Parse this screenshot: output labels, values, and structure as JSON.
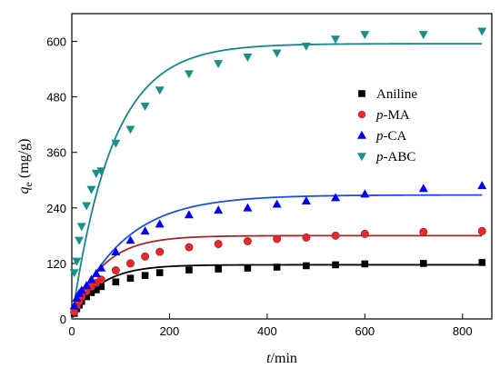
{
  "chart_data": {
    "type": "scatter",
    "title": "",
    "xlabel": "t/min",
    "xlabel_parts": [
      "t",
      "/min"
    ],
    "ylabel": "qe (mg/g)",
    "ylabel_parts": [
      "q",
      "e",
      " (mg/g)"
    ],
    "xlim": [
      0,
      860
    ],
    "ylim": [
      0,
      660
    ],
    "xticks": [
      0,
      200,
      400,
      600,
      800
    ],
    "yticks": [
      0,
      120,
      240,
      360,
      480,
      600
    ],
    "grid": false,
    "legend_position": "right-middle",
    "series": [
      {
        "name": "Aniline",
        "name_parts": [
          "",
          "Aniline"
        ],
        "marker": "square",
        "color": "#000000",
        "fit_color": "#000000",
        "fit_qe": 117,
        "fit_k": 0.0175,
        "x": [
          5,
          10,
          15,
          20,
          30,
          40,
          50,
          60,
          90,
          120,
          150,
          180,
          240,
          300,
          360,
          420,
          480,
          540,
          600,
          720,
          840
        ],
        "y": [
          12,
          22,
          30,
          38,
          48,
          57,
          63,
          70,
          80,
          88,
          94,
          100,
          106,
          108,
          110,
          112,
          115,
          117,
          119,
          120,
          122
        ]
      },
      {
        "name": "p-MA",
        "name_parts": [
          "p",
          "-MA"
        ],
        "marker": "circle",
        "color": "#e8282a",
        "fit_color": "#9c2a2a",
        "fit_qe": 180,
        "fit_k": 0.016,
        "x": [
          5,
          10,
          15,
          20,
          30,
          40,
          50,
          60,
          90,
          120,
          150,
          180,
          240,
          300,
          360,
          420,
          480,
          540,
          600,
          720,
          840
        ],
        "y": [
          15,
          28,
          38,
          48,
          60,
          70,
          78,
          85,
          105,
          120,
          135,
          145,
          155,
          162,
          168,
          173,
          176,
          180,
          184,
          188,
          190
        ]
      },
      {
        "name": "p-CA",
        "name_parts": [
          "p",
          "-CA"
        ],
        "marker": "triangle-up",
        "color": "#0000ee",
        "fit_color": "#1c4fd9",
        "fit_qe": 268,
        "fit_k": 0.0095,
        "x": [
          5,
          10,
          15,
          20,
          30,
          40,
          50,
          60,
          90,
          120,
          150,
          180,
          240,
          300,
          360,
          420,
          480,
          540,
          600,
          720,
          840
        ],
        "y": [
          28,
          45,
          55,
          62,
          72,
          85,
          98,
          110,
          145,
          170,
          190,
          205,
          225,
          235,
          240,
          248,
          255,
          262,
          270,
          282,
          288
        ]
      },
      {
        "name": "p-ABC",
        "name_parts": [
          "p",
          "-ABC"
        ],
        "marker": "triangle-down",
        "color": "#1a8f8a",
        "fit_color": "#1a8585",
        "fit_qe": 595,
        "fit_k": 0.012,
        "x": [
          5,
          10,
          15,
          20,
          30,
          40,
          50,
          60,
          90,
          120,
          150,
          180,
          240,
          300,
          360,
          420,
          480,
          540,
          600,
          720,
          840
        ],
        "y": [
          100,
          125,
          170,
          200,
          245,
          280,
          315,
          320,
          380,
          410,
          460,
          495,
          530,
          552,
          566,
          575,
          590,
          605,
          615,
          615,
          622
        ]
      }
    ]
  }
}
